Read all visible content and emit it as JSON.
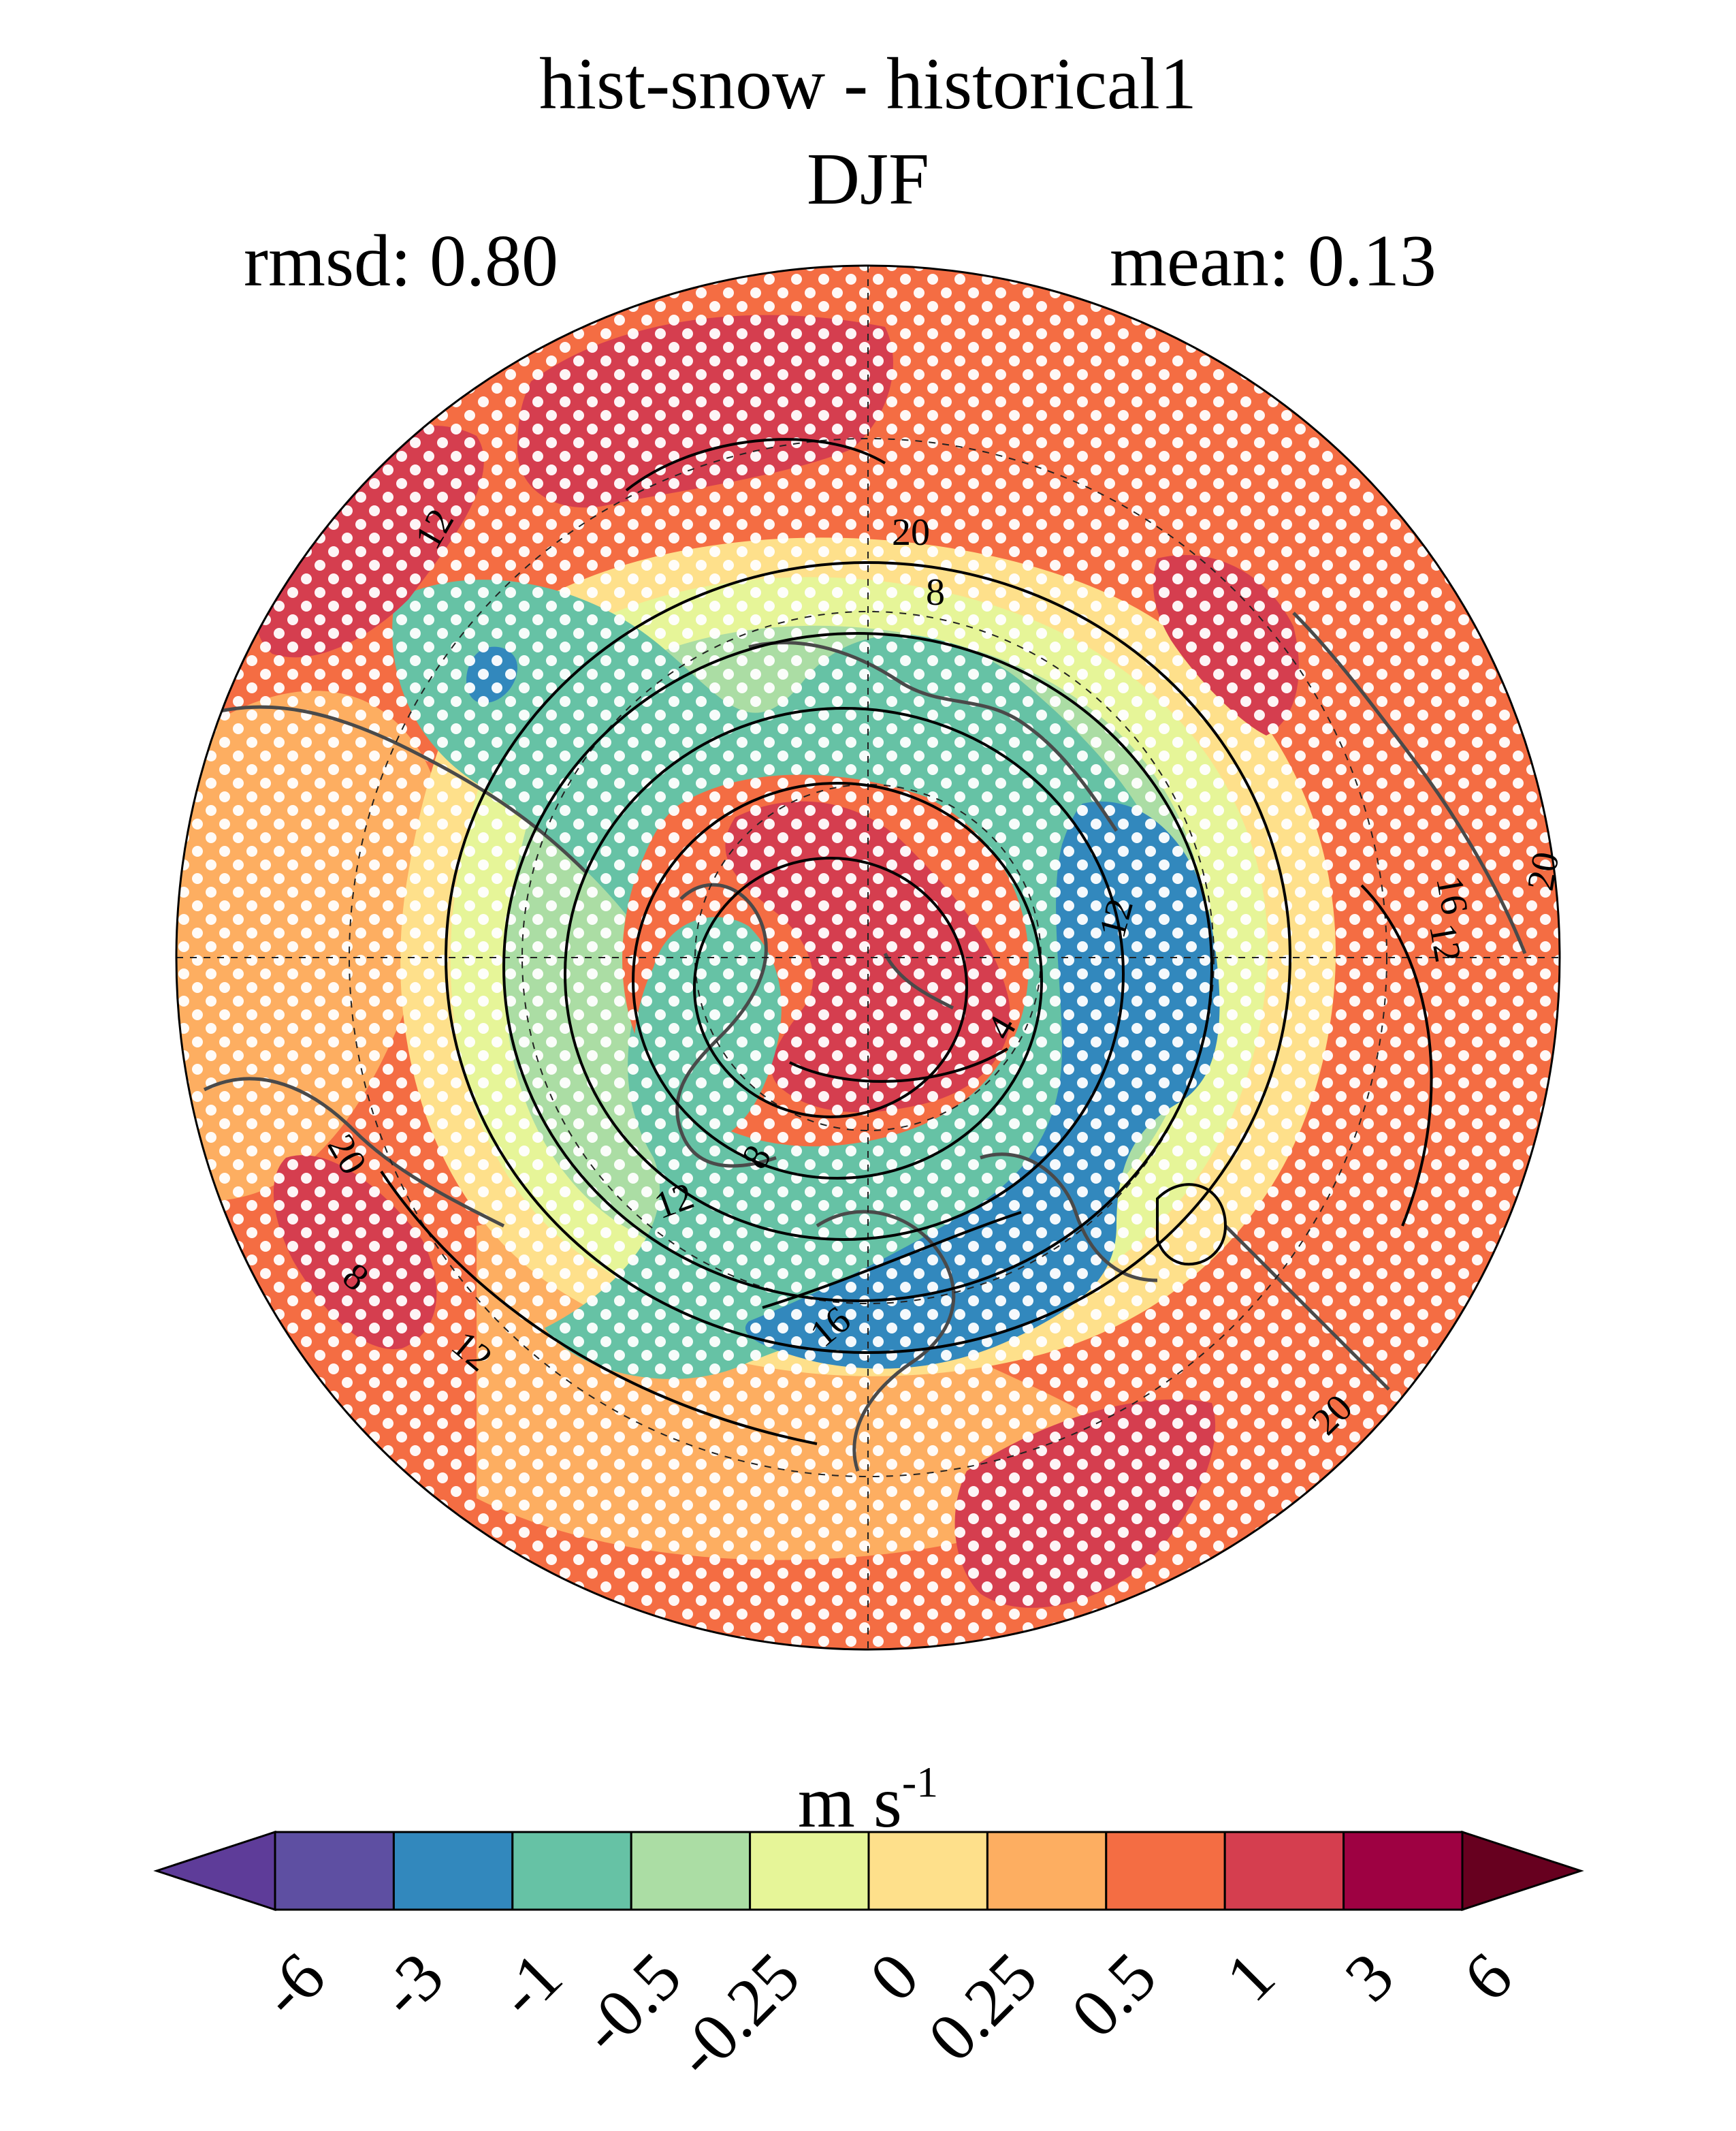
{
  "header": {
    "title": "hist-snow - historical1",
    "season": "DJF",
    "rmsd_label": "rmsd: 0.80",
    "mean_label": "mean: 0.13"
  },
  "map": {
    "projection": "north polar stereographic",
    "contour_labels": [
      "12",
      "20",
      "8",
      "16",
      "12",
      "20",
      "12",
      "4",
      "20",
      "8",
      "12",
      "8",
      "12",
      "16",
      "20"
    ],
    "stippling": "white dots",
    "colors": {
      "red": "#d53e4f",
      "orange": "#f46d43",
      "light_orange": "#fdae61",
      "yellow": "#fee08b",
      "light_yellow_green": "#e6f598",
      "light_green": "#abdda4",
      "teal": "#66c2a5",
      "blue": "#3288bd"
    }
  },
  "colorbar": {
    "units_main": "m s",
    "units_exp": "-1",
    "tick_labels": [
      "-6",
      "-3",
      "-1",
      "-0.5",
      "-0.25",
      "0",
      "0.25",
      "0.5",
      "1",
      "3",
      "6"
    ],
    "colors": [
      "#5e3c99",
      "#5e4fa2",
      "#3288bd",
      "#66c2a5",
      "#abdda4",
      "#e6f598",
      "#fee08b",
      "#fdae61",
      "#f46d43",
      "#d53e4f",
      "#9e0142",
      "#67001f"
    ]
  }
}
